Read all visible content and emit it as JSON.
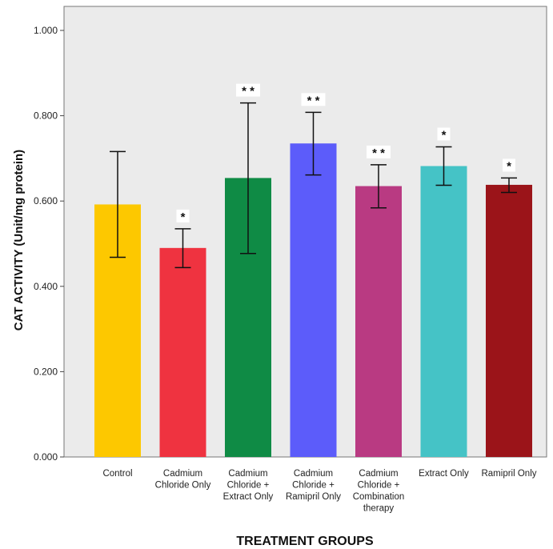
{
  "chart_data": {
    "type": "bar",
    "ylabel": "CAT ACTIVITY (Unit/mg protein)",
    "xlabel": "TREATMENT GROUPS",
    "ylim": [
      0,
      1.0
    ],
    "yticks": [
      "0.000",
      "0.200",
      "0.400",
      "0.600",
      "0.800",
      "1.000"
    ],
    "grid": false,
    "categories": [
      [
        "Control"
      ],
      [
        "Cadmium",
        "Chloride Only"
      ],
      [
        "Cadmium",
        "Chloride +",
        "Extract Only"
      ],
      [
        "Cadmium",
        "Chloride +",
        "Ramipril Only"
      ],
      [
        "Cadmium",
        "Chloride +",
        "Combination",
        "therapy"
      ],
      [
        "Extract Only"
      ],
      [
        "Ramipril Only"
      ]
    ],
    "values": [
      0.592,
      0.49,
      0.654,
      0.735,
      0.635,
      0.682,
      0.638
    ],
    "error_high": [
      0.716,
      0.535,
      0.83,
      0.808,
      0.685,
      0.727,
      0.654
    ],
    "error_low": [
      0.468,
      0.444,
      0.477,
      0.661,
      0.584,
      0.637,
      0.62
    ],
    "significance": [
      "",
      "*",
      "* *",
      "* *",
      "* *",
      "*",
      "*"
    ],
    "colors": [
      "#fdc800",
      "#ef3340",
      "#0f8b45",
      "#5c5cfa",
      "#b93a82",
      "#45c3c6",
      "#9b1419"
    ],
    "plot_background": "#ebebeb"
  }
}
